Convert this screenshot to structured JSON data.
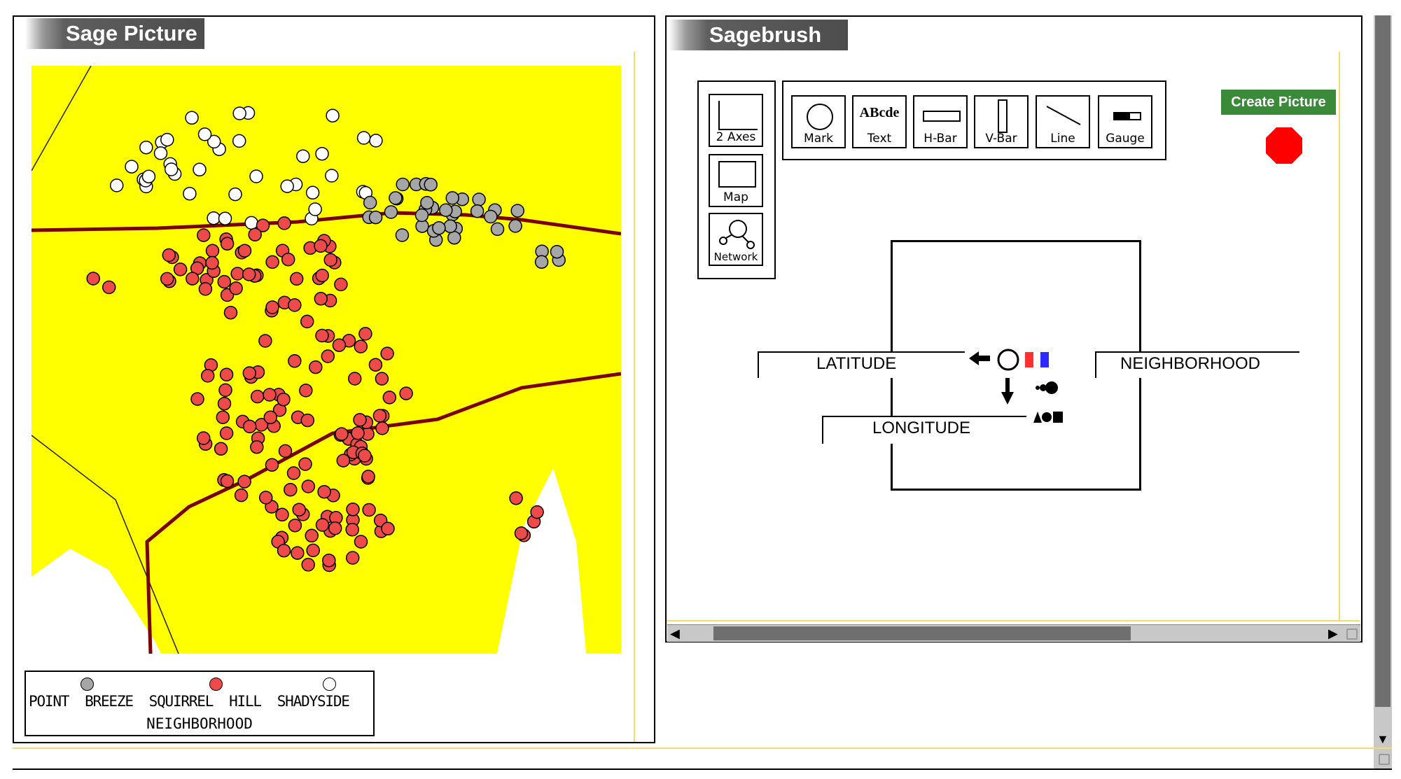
{
  "left_window": {
    "title": "Sage Picture"
  },
  "right_window": {
    "title": "Sagebrush"
  },
  "toolbar": {
    "create_picture_label": "Create Picture",
    "stop_color": "#ff0000",
    "create_color": "#3a8a3a"
  },
  "palette": {
    "frames": [
      {
        "id": "2axes",
        "label": "2 Axes"
      },
      {
        "id": "map",
        "label": "Map"
      },
      {
        "id": "network",
        "label": "Network"
      }
    ],
    "marks": [
      {
        "id": "mark",
        "label": "Mark"
      },
      {
        "id": "text",
        "label": "Text",
        "glyph": "ABcde"
      },
      {
        "id": "hbar",
        "label": "H-Bar"
      },
      {
        "id": "vbar",
        "label": "V-Bar"
      },
      {
        "id": "line",
        "label": "Line"
      },
      {
        "id": "gauge",
        "label": "Gauge"
      }
    ]
  },
  "sketch": {
    "latitude_label": "LATITUDE",
    "longitude_label": "LONGITUDE",
    "neighborhood_label": "NEIGHBORHOOD"
  },
  "legend": {
    "items": [
      {
        "label": "POINT BREEZE",
        "color": "#a6a6a6"
      },
      {
        "label": "SQUIRREL HILL",
        "color": "#ef4a4a"
      },
      {
        "label": "SHADYSIDE",
        "color": "#ffffff"
      }
    ],
    "label_text": "POINT  BREEZE  SQUIRREL  HILL  SHADYSIDE",
    "title": "NEIGHBORHOOD"
  },
  "colors": {
    "map_fill": "#ffff00",
    "road": "#7a0000",
    "point_breeze": "#a6a6a6",
    "squirrel_hill": "#ef4a4a",
    "shadyside": "#ffffff"
  }
}
